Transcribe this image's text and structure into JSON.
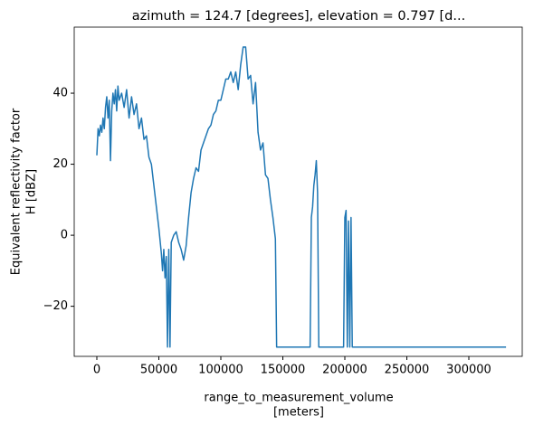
{
  "chart_data": {
    "type": "line",
    "title": "azimuth = 124.7 [degrees], elevation = 0.797 [d...",
    "xlabel": [
      "range_to_measurement_volume",
      "[meters]"
    ],
    "ylabel": [
      "Equivalent reflectivity factor",
      "H [dBZ]"
    ],
    "x": [
      0,
      1000,
      2000,
      3000,
      4000,
      5000,
      6000,
      7000,
      8000,
      9000,
      10000,
      11000,
      12000,
      13000,
      14000,
      15000,
      16000,
      17000,
      18000,
      20000,
      22000,
      24000,
      26000,
      28000,
      30000,
      32000,
      34000,
      36000,
      38000,
      40000,
      42000,
      44000,
      46000,
      48000,
      50000,
      52000,
      53000,
      54000,
      55000,
      56000,
      57000,
      58000,
      59000,
      60000,
      62000,
      64000,
      66000,
      68000,
      70000,
      72000,
      74000,
      76000,
      78000,
      80000,
      82000,
      84000,
      86000,
      88000,
      90000,
      92000,
      94000,
      96000,
      98000,
      100000,
      102000,
      104000,
      106000,
      108000,
      110000,
      112000,
      114000,
      116000,
      118000,
      120000,
      122000,
      124000,
      126000,
      128000,
      130000,
      132000,
      134000,
      136000,
      138000,
      140000,
      142000,
      144000,
      145000,
      172000,
      173000,
      174000,
      175000,
      176000,
      177000,
      178000,
      179000,
      199000,
      200000,
      201000,
      202000,
      203000,
      204000,
      205000,
      206000,
      330000
    ],
    "series": [
      {
        "color": "#1f77b4",
        "values": [
          22.5,
          30,
          28,
          31,
          29,
          33,
          30,
          36,
          39,
          33,
          38,
          21,
          35,
          40,
          37,
          41,
          35,
          42,
          38,
          40,
          36,
          41,
          33,
          39,
          34,
          37,
          30,
          33,
          27,
          28,
          22,
          20,
          14,
          8,
          2,
          -5,
          -10,
          -4,
          -12,
          -6,
          -31.5,
          -4,
          -31.5,
          -2,
          0,
          1,
          -2,
          -4,
          -7,
          -3,
          5,
          12,
          16,
          19,
          18,
          24,
          26,
          28,
          30,
          31,
          34,
          35,
          38,
          38,
          41,
          44,
          44,
          46,
          43,
          46,
          41,
          48,
          53,
          53,
          44,
          45,
          37,
          43,
          29,
          24,
          26,
          17,
          16,
          10,
          5,
          -1,
          -31.5,
          -31.5,
          5,
          8,
          14,
          17,
          21,
          12,
          -31.5,
          -31.5,
          5,
          7,
          -31.5,
          4,
          -31.5,
          5,
          -31.5,
          -31.5
        ]
      }
    ],
    "xlim": [
      -18248,
      343066
    ],
    "ylim": [
      -34.1,
      58.6
    ],
    "xticks": [
      0,
      50000,
      100000,
      150000,
      200000,
      250000,
      300000
    ],
    "yticks": [
      {
        "value": -20,
        "label": "−20"
      },
      0,
      20,
      40
    ]
  }
}
